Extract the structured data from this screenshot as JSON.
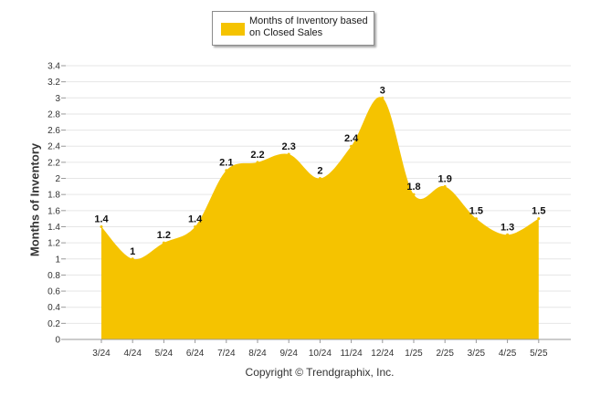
{
  "legend": {
    "label": "Months of Inventory based on Closed Sales"
  },
  "footer": {
    "copyright": "Copyright © Trendgraphix, Inc."
  },
  "chart_data": {
    "type": "area",
    "categories": [
      "3/24",
      "4/24",
      "5/24",
      "6/24",
      "7/24",
      "8/24",
      "9/24",
      "10/24",
      "11/24",
      "12/24",
      "1/25",
      "2/25",
      "3/25",
      "4/25",
      "5/25"
    ],
    "series": [
      {
        "name": "Months of Inventory based on Closed Sales",
        "values": [
          1.4,
          1,
          1.2,
          1.4,
          2.1,
          2.2,
          2.3,
          2,
          2.4,
          3,
          1.8,
          1.9,
          1.5,
          1.3,
          1.5
        ]
      }
    ],
    "data_labels": [
      "1.4",
      "1",
      "1.2",
      "1.4",
      "2.1",
      "2.2",
      "2.3",
      "2",
      "2.4",
      "3",
      "1.8",
      "1.9",
      "1.5",
      "1.3",
      "1.5"
    ],
    "ylabel": "Months of Inventory",
    "ylim": [
      0,
      3.4
    ],
    "yticks": [
      "0",
      "0.2",
      "0.4",
      "0.6",
      "0.8",
      "1",
      "1.2",
      "1.4",
      "1.6",
      "1.8",
      "2",
      "2.2",
      "2.4",
      "2.6",
      "2.8",
      "3",
      "3.2",
      "3.4"
    ],
    "grid": true,
    "smooth": true,
    "legend_position": "top-center",
    "colors": {
      "fill": "#F5C300",
      "grid": "#e6e6e6"
    }
  }
}
